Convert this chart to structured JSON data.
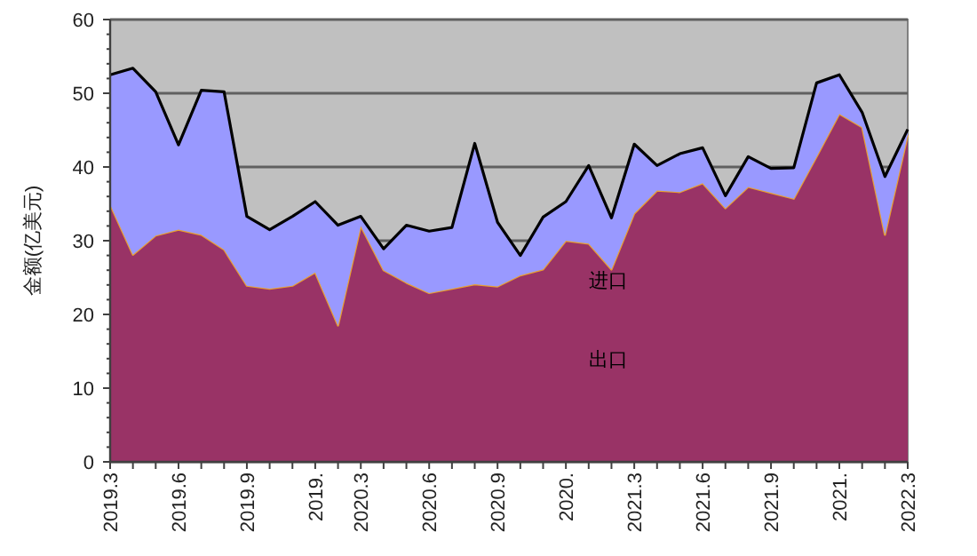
{
  "chart_data": {
    "type": "area",
    "stacked": true,
    "ylabel": "金额(亿美元)",
    "categories": [
      "2019.3",
      null,
      null,
      "2019.6",
      null,
      null,
      "2019.9",
      null,
      null,
      "2019.",
      null,
      "2020.3",
      null,
      null,
      "2020.6",
      null,
      null,
      "2020.9",
      null,
      null,
      "2020.",
      null,
      null,
      "2021.3",
      null,
      null,
      "2021.6",
      null,
      null,
      "2021.9",
      null,
      null,
      "2021.",
      null,
      null,
      "2022.3"
    ],
    "series": [
      {
        "name": "出口",
        "color": "#993366",
        "values": [
          34.9,
          28.1,
          30.7,
          31.5,
          30.8,
          28.8,
          23.9,
          23.5,
          23.9,
          25.7,
          18.5,
          32.0,
          26.0,
          24.3,
          22.9,
          23.5,
          24.1,
          23.8,
          25.3,
          26.1,
          30.0,
          29.6,
          26.1,
          33.7,
          36.8,
          36.6,
          37.8,
          34.4,
          37.3,
          36.5,
          35.7,
          41.4,
          47.2,
          45.4,
          30.8,
          44.3
        ]
      },
      {
        "name": "进口",
        "color": "#9999ff",
        "values": [
          17.6,
          25.3,
          19.5,
          11.5,
          19.6,
          21.4,
          9.4,
          8.0,
          9.4,
          9.6,
          13.6,
          1.3,
          2.9,
          7.8,
          8.4,
          8.3,
          19.1,
          8.7,
          2.7,
          7.1,
          5.3,
          10.6,
          7.0,
          9.4,
          3.4,
          5.2,
          4.8,
          1.7,
          4.1,
          3.3,
          4.2,
          10.0,
          5.3,
          2.0,
          7.9,
          0.8
        ]
      }
    ],
    "ylim": [
      0,
      60
    ],
    "yticks": [
      0,
      10,
      20,
      30,
      40,
      50,
      60
    ],
    "grid": "y"
  }
}
